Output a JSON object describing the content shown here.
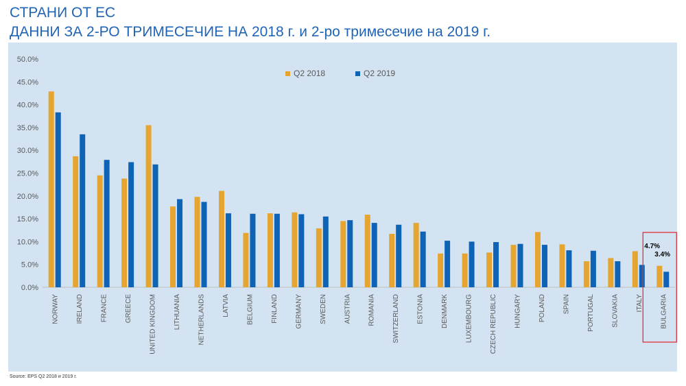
{
  "header": {
    "title_line1": "СТРАНИ ОТ ЕС",
    "title_line2": "ДАННИ ЗА 2-РО ТРИМЕСЕЧИЕ НА 2018 г. и 2-ро тримесечие на 2019 г."
  },
  "source": "Source: EPS Q2 2018 и 2019 г.",
  "colors": {
    "q2_2018": "#e6a531",
    "q2_2019": "#0f63b5",
    "highlight_box": "#e0303a",
    "panel": "#d3e3f1"
  },
  "chart_data": {
    "type": "bar",
    "title": "",
    "xlabel": "",
    "ylabel": "",
    "ylim": [
      0,
      50
    ],
    "y_ticks": [
      "0.0%",
      "5.0%",
      "10.0%",
      "15.0%",
      "20.0%",
      "25.0%",
      "30.0%",
      "35.0%",
      "40.0%",
      "45.0%",
      "50.0%"
    ],
    "grid": false,
    "legend": "top-center",
    "categories": [
      "NORWAY",
      "IRELAND",
      "FRANCE",
      "GREECE",
      "UNITED KINGDOM",
      "LITHUANIA",
      "NETHERLANDS",
      "LATVIA",
      "BELGIUM",
      "FINLAND",
      "GERMANY",
      "SWEDEN",
      "AUSTRIA",
      "ROMANIA",
      "SWITZERLAND",
      "ESTONIA",
      "DENMARK",
      "LUXEMBOURG",
      "CZECH REPUBLIC",
      "HUNGARY",
      "POLAND",
      "SPAIN",
      "PORTUGAL",
      "SLOVAKIA",
      "ITALY",
      "BULGARIA"
    ],
    "series": [
      {
        "name": "Q2 2018",
        "values": [
          42.9,
          28.7,
          24.5,
          23.8,
          35.5,
          17.7,
          19.8,
          21.1,
          11.9,
          16.2,
          16.4,
          12.9,
          14.5,
          15.9,
          11.7,
          14.1,
          7.4,
          7.4,
          7.6,
          9.3,
          12.1,
          9.4,
          5.7,
          6.4,
          7.9,
          4.7
        ]
      },
      {
        "name": "Q2 2019",
        "values": [
          38.3,
          33.5,
          27.9,
          27.4,
          26.9,
          19.3,
          18.7,
          16.2,
          16.1,
          16.1,
          16.0,
          15.5,
          14.7,
          14.1,
          13.7,
          12.2,
          10.2,
          10.0,
          9.9,
          9.5,
          9.3,
          8.1,
          8.0,
          5.7,
          4.9,
          3.4
        ]
      }
    ],
    "annotations": [
      {
        "category": "BULGARIA",
        "series": "Q2 2018",
        "label": "4.7%"
      },
      {
        "category": "BULGARIA",
        "series": "Q2 2019",
        "label": "3.4%"
      }
    ],
    "highlight": "BULGARIA"
  }
}
